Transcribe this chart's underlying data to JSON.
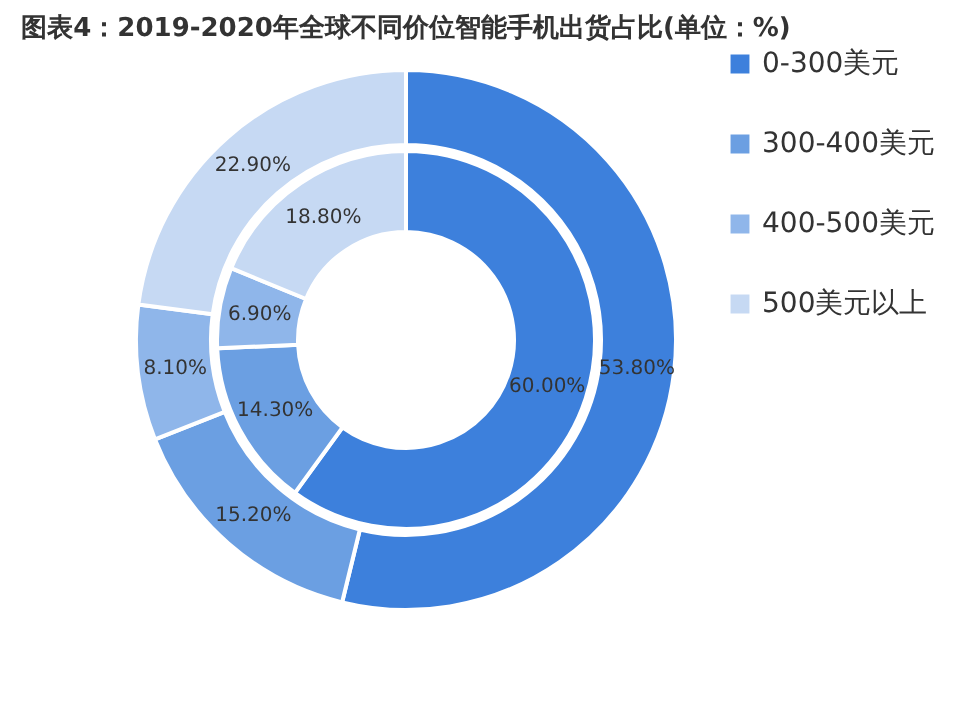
{
  "chart_data": {
    "type": "donut",
    "title": "图表4：2019-2020年全球不同价位智能手机出货占比(单位：%)",
    "categories": [
      "0-300美元",
      "300-400美元",
      "400-500美元",
      "500美元以上"
    ],
    "colors": [
      "#3d80dc",
      "#6b9fe2",
      "#8fb6ea",
      "#c6d9f3"
    ],
    "series": [
      {
        "values": [
          60.0,
          14.3,
          6.9,
          18.8
        ],
        "value_labels": [
          "60.00%",
          "14.30%",
          "6.90%",
          "18.80%"
        ]
      },
      {
        "values": [
          53.8,
          15.2,
          8.1,
          22.9
        ],
        "value_labels": [
          "53.80%",
          "15.20%",
          "8.10%",
          "22.90%"
        ]
      }
    ],
    "legend": "right"
  }
}
